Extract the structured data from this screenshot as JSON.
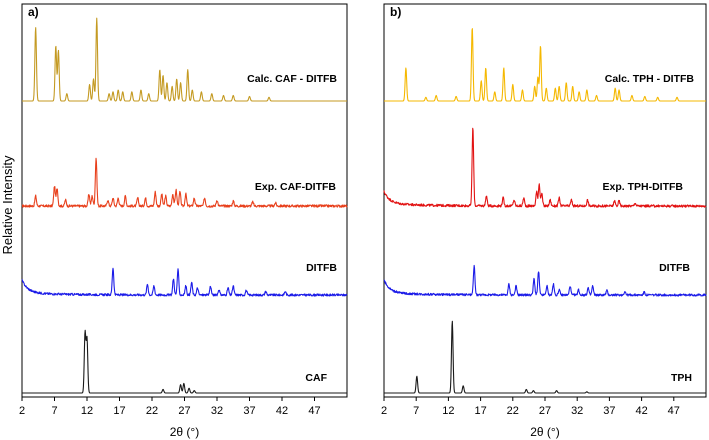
{
  "figure": {
    "ylabel": "Relative Intensity"
  },
  "chart_data": [
    {
      "panel_label": "a)",
      "type": "line",
      "title": "",
      "xlabel": "2θ (°)",
      "ylabel": "Relative Intensity",
      "xlim": [
        2,
        52
      ],
      "x_ticks": [
        2,
        7,
        12,
        17,
        22,
        27,
        32,
        37,
        42,
        47
      ],
      "grid": false,
      "series": [
        {
          "name": "Calc. CAF - DITFB",
          "color": "#c49a22",
          "baseline": 1,
          "peaks": [
            [
              4.1,
              0.8
            ],
            [
              7.2,
              0.6
            ],
            [
              7.6,
              0.55
            ],
            [
              8.9,
              0.08
            ],
            [
              12.4,
              0.18
            ],
            [
              13.0,
              0.24
            ],
            [
              13.5,
              0.9
            ],
            [
              15.4,
              0.08
            ],
            [
              16.0,
              0.1
            ],
            [
              16.8,
              0.12
            ],
            [
              17.5,
              0.1
            ],
            [
              18.9,
              0.1
            ],
            [
              20.3,
              0.12
            ],
            [
              21.5,
              0.08
            ],
            [
              23.2,
              0.34
            ],
            [
              23.7,
              0.28
            ],
            [
              24.3,
              0.2
            ],
            [
              25.1,
              0.16
            ],
            [
              25.8,
              0.24
            ],
            [
              26.4,
              0.2
            ],
            [
              27.5,
              0.34
            ],
            [
              28.2,
              0.12
            ],
            [
              29.6,
              0.1
            ],
            [
              31.2,
              0.08
            ],
            [
              33.0,
              0.06
            ],
            [
              34.5,
              0.06
            ],
            [
              37.0,
              0.05
            ],
            [
              40.0,
              0.04
            ]
          ]
        },
        {
          "name": "Exp. CAF-DITFB",
          "color": "#e8401c",
          "baseline": 1.55,
          "noise": 0.012,
          "peaks": [
            [
              4.1,
              0.1
            ],
            [
              7.0,
              0.2
            ],
            [
              7.4,
              0.18
            ],
            [
              8.7,
              0.06
            ],
            [
              12.3,
              0.12
            ],
            [
              12.8,
              0.1
            ],
            [
              13.4,
              0.48
            ],
            [
              15.2,
              0.06
            ],
            [
              16.0,
              0.08
            ],
            [
              16.8,
              0.08
            ],
            [
              17.9,
              0.1
            ],
            [
              19.8,
              0.08
            ],
            [
              21.0,
              0.08
            ],
            [
              22.5,
              0.14
            ],
            [
              23.5,
              0.12
            ],
            [
              24.1,
              0.1
            ],
            [
              25.2,
              0.12
            ],
            [
              25.7,
              0.16
            ],
            [
              26.3,
              0.14
            ],
            [
              27.2,
              0.12
            ],
            [
              28.5,
              0.08
            ],
            [
              30.1,
              0.08
            ],
            [
              32.0,
              0.06
            ],
            [
              34.5,
              0.05
            ],
            [
              37.5,
              0.04
            ],
            [
              41.0,
              0.03
            ]
          ]
        },
        {
          "name": "DITFB",
          "color": "#1c1ce8",
          "baseline": 2.05,
          "noise": 0.012,
          "decay_start": 0.14,
          "peaks": [
            [
              16.0,
              0.3
            ],
            [
              21.3,
              0.12
            ],
            [
              22.3,
              0.1
            ],
            [
              25.3,
              0.18
            ],
            [
              26.0,
              0.28
            ],
            [
              27.2,
              0.1
            ],
            [
              28.1,
              0.14
            ],
            [
              29.0,
              0.08
            ],
            [
              31.0,
              0.1
            ],
            [
              32.3,
              0.06
            ],
            [
              33.7,
              0.08
            ],
            [
              34.5,
              0.1
            ],
            [
              36.5,
              0.05
            ],
            [
              39.5,
              0.04
            ],
            [
              42.5,
              0.04
            ]
          ]
        },
        {
          "name": "CAF",
          "color": "#1a1a1a",
          "baseline": 2.6,
          "peaks": [
            [
              11.7,
              0.5
            ],
            [
              12.0,
              0.45
            ],
            [
              23.7,
              0.03
            ],
            [
              26.4,
              0.07
            ],
            [
              26.9,
              0.08
            ],
            [
              27.7,
              0.04
            ],
            [
              28.5,
              0.02
            ]
          ]
        }
      ]
    },
    {
      "panel_label": "b)",
      "type": "line",
      "title": "",
      "xlabel": "2θ (°)",
      "ylabel": "Relative Intensity",
      "xlim": [
        2,
        52
      ],
      "x_ticks": [
        2,
        7,
        12,
        17,
        22,
        27,
        32,
        37,
        42,
        47
      ],
      "grid": false,
      "series": [
        {
          "name": "Calc. TPH - DITFB",
          "color": "#f5b800",
          "baseline": 1,
          "peaks": [
            [
              5.4,
              0.36
            ],
            [
              8.5,
              0.04
            ],
            [
              10.1,
              0.06
            ],
            [
              13.2,
              0.05
            ],
            [
              15.7,
              0.8
            ],
            [
              17.1,
              0.22
            ],
            [
              17.8,
              0.36
            ],
            [
              19.2,
              0.1
            ],
            [
              20.6,
              0.36
            ],
            [
              22.0,
              0.18
            ],
            [
              23.5,
              0.12
            ],
            [
              25.4,
              0.16
            ],
            [
              25.9,
              0.26
            ],
            [
              26.3,
              0.6
            ],
            [
              27.2,
              0.14
            ],
            [
              28.6,
              0.14
            ],
            [
              29.2,
              0.16
            ],
            [
              30.3,
              0.2
            ],
            [
              31.3,
              0.16
            ],
            [
              32.3,
              0.1
            ],
            [
              33.5,
              0.12
            ],
            [
              35.0,
              0.06
            ],
            [
              37.9,
              0.14
            ],
            [
              38.5,
              0.12
            ],
            [
              40.5,
              0.06
            ],
            [
              42.5,
              0.05
            ],
            [
              44.5,
              0.04
            ],
            [
              47.5,
              0.04
            ]
          ]
        },
        {
          "name": "Exp. TPH-DITFB",
          "color": "#e21212",
          "baseline": 1.55,
          "noise": 0.012,
          "decay_start": 0.12,
          "peaks": [
            [
              15.8,
              0.78
            ],
            [
              17.9,
              0.1
            ],
            [
              20.5,
              0.08
            ],
            [
              22.2,
              0.06
            ],
            [
              23.7,
              0.08
            ],
            [
              25.7,
              0.14
            ],
            [
              26.1,
              0.22
            ],
            [
              26.5,
              0.12
            ],
            [
              27.8,
              0.06
            ],
            [
              29.2,
              0.08
            ],
            [
              31.1,
              0.06
            ],
            [
              33.6,
              0.06
            ],
            [
              37.8,
              0.05
            ],
            [
              38.5,
              0.05
            ],
            [
              41.0,
              0.03
            ]
          ]
        },
        {
          "name": "DITFB",
          "color": "#1c1ce8",
          "baseline": 2.05,
          "noise": 0.012,
          "decay_start": 0.14,
          "peaks": [
            [
              16.0,
              0.32
            ],
            [
              21.4,
              0.12
            ],
            [
              22.5,
              0.1
            ],
            [
              25.3,
              0.18
            ],
            [
              26.0,
              0.26
            ],
            [
              27.3,
              0.1
            ],
            [
              28.3,
              0.12
            ],
            [
              29.2,
              0.06
            ],
            [
              30.9,
              0.1
            ],
            [
              32.2,
              0.06
            ],
            [
              33.7,
              0.08
            ],
            [
              34.4,
              0.1
            ],
            [
              36.6,
              0.05
            ],
            [
              39.4,
              0.04
            ],
            [
              42.4,
              0.03
            ]
          ]
        },
        {
          "name": "TPH",
          "color": "#1a1a1a",
          "baseline": 2.6,
          "peaks": [
            [
              7.1,
              0.14
            ],
            [
              12.6,
              0.6
            ],
            [
              14.3,
              0.06
            ],
            [
              24.1,
              0.03
            ],
            [
              25.2,
              0.02
            ],
            [
              28.8,
              0.02
            ],
            [
              33.5,
              0.01
            ]
          ]
        }
      ]
    }
  ]
}
